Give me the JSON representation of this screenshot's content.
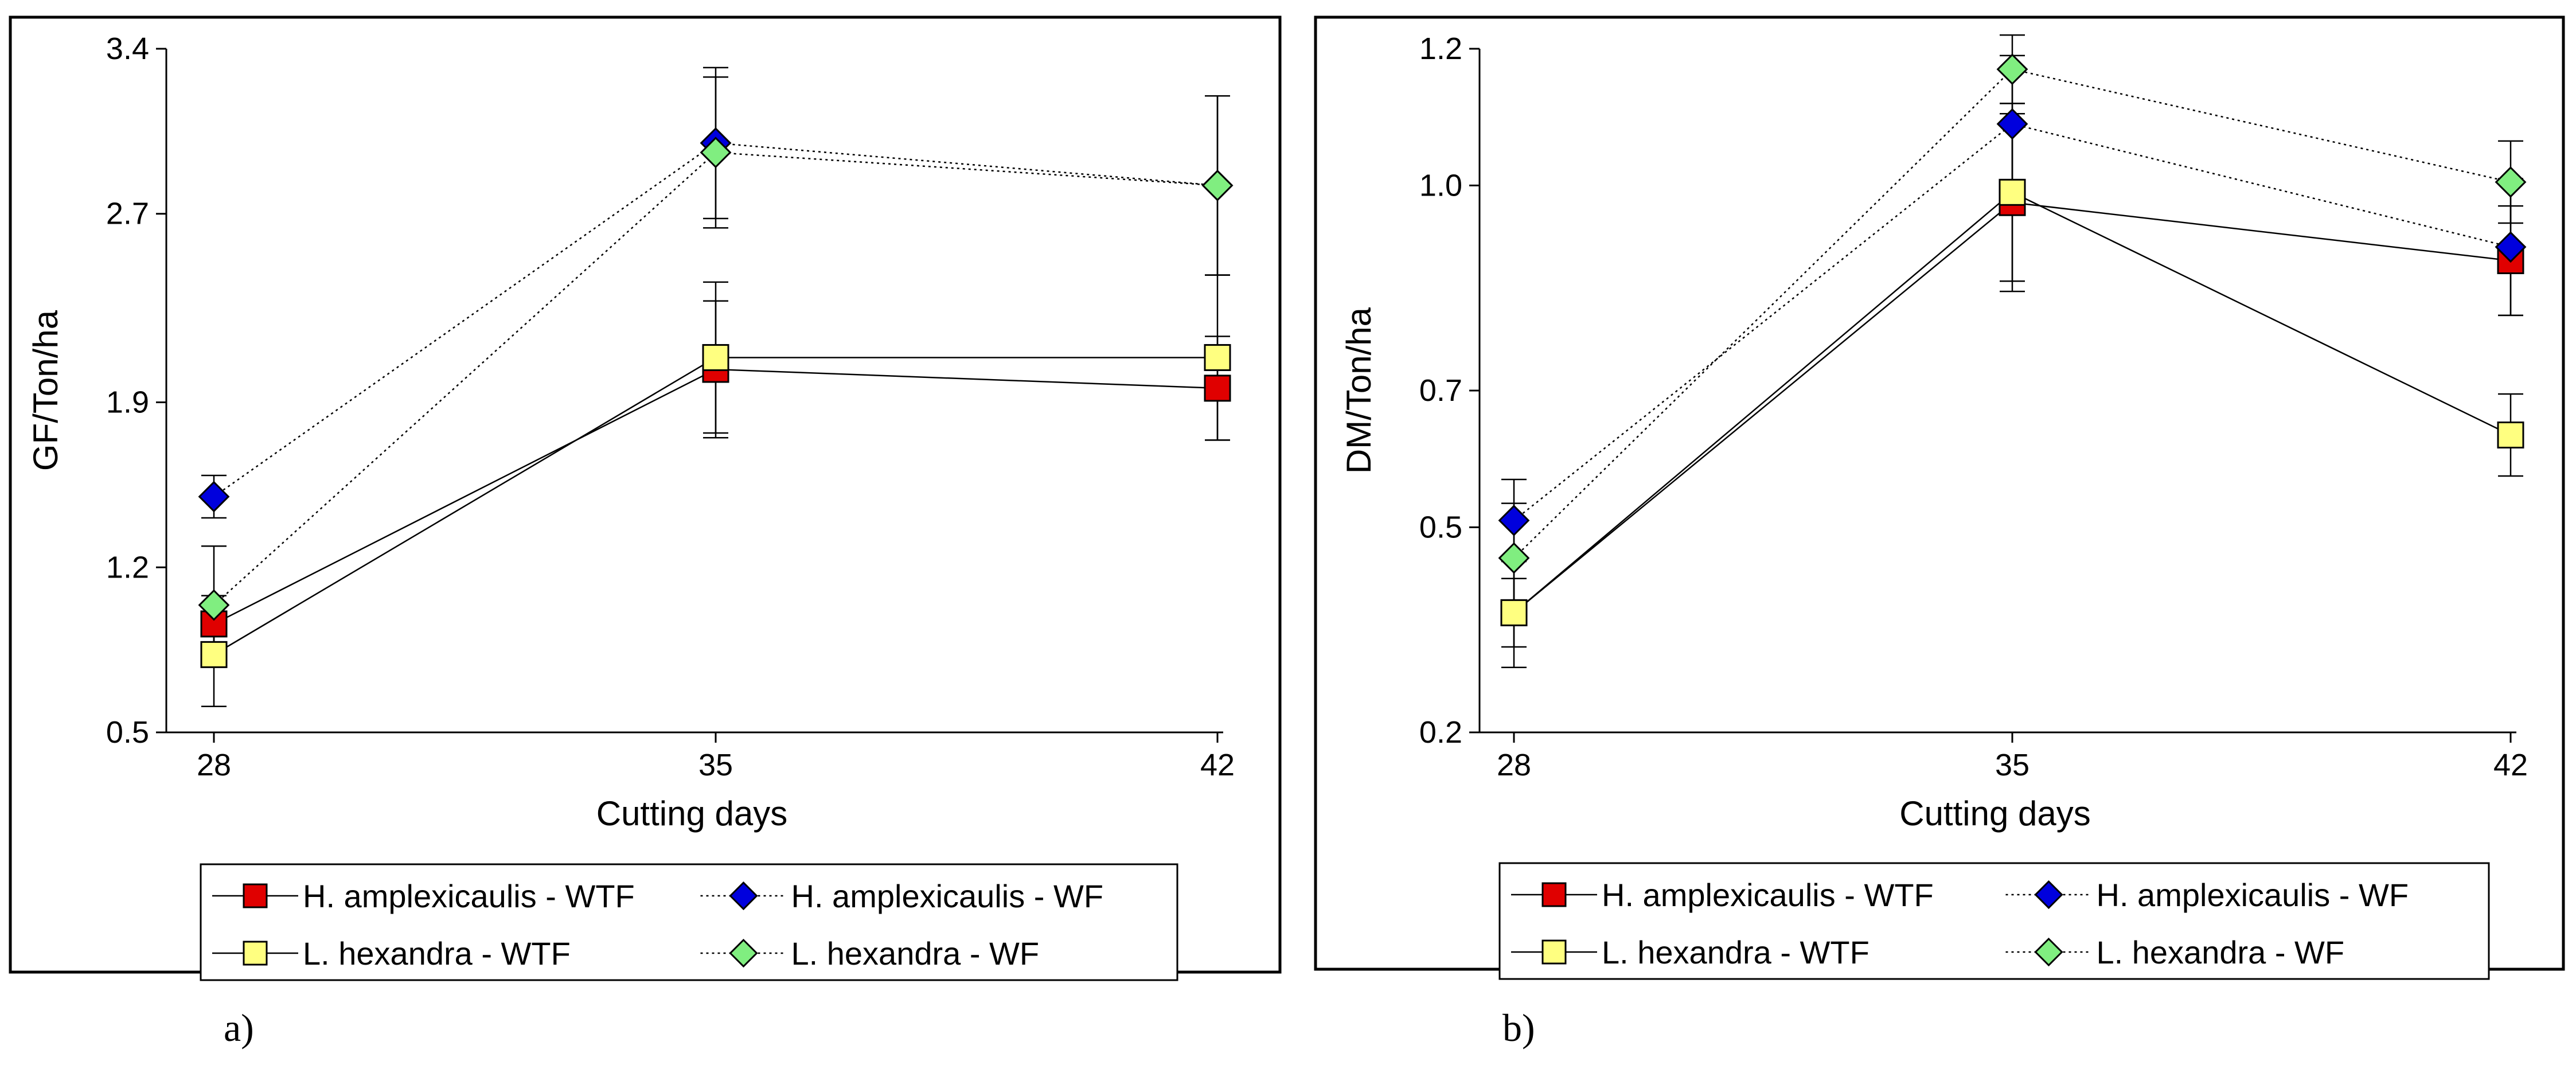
{
  "chart_data": [
    {
      "type": "line",
      "panel_label": "a)",
      "xlabel": "Cutting days",
      "ylabel": "GF/Ton/ha",
      "x": [
        28,
        35,
        42
      ],
      "x_tick_labels": [
        "28",
        "35",
        "42"
      ],
      "y_ticks": [
        0.5,
        1.2,
        1.9,
        2.7,
        3.4
      ],
      "y_tick_labels": [
        "0.5",
        "1.2",
        "1.9",
        "2.7",
        "3.4"
      ],
      "ylim": [
        0.5,
        3.4
      ],
      "grid": false,
      "legend_position": "bottom",
      "series": [
        {
          "name": "H. amplexicaulis - WTF",
          "values": [
            0.96,
            2.04,
            1.96
          ],
          "errors": [
            0.12,
            0.29,
            0.22
          ],
          "color": "#e00000",
          "marker": "square",
          "line": "solid"
        },
        {
          "name": "H. amplexicaulis - WF",
          "values": [
            1.5,
            3.0,
            2.82
          ],
          "errors": [
            0.09,
            0.32,
            0.38
          ],
          "color": "#0000dd",
          "marker": "diamond",
          "line": "dotted"
        },
        {
          "name": "L. hexandra - WTF",
          "values": [
            0.83,
            2.09,
            2.09
          ],
          "errors": [
            0.22,
            0.32,
            0.35
          ],
          "color": "#ffff80",
          "marker": "square",
          "line": "solid"
        },
        {
          "name": "L. hexandra - WF",
          "values": [
            1.04,
            2.96,
            2.82
          ],
          "errors": [
            0.25,
            0.32,
            0.38
          ],
          "color": "#80ee80",
          "marker": "diamond",
          "line": "dotted"
        }
      ]
    },
    {
      "type": "line",
      "panel_label": "b)",
      "xlabel": "Cutting days",
      "ylabel": "DM/Ton/ha",
      "x": [
        28,
        35,
        42
      ],
      "x_tick_labels": [
        "28",
        "35",
        "42"
      ],
      "y_ticks": [
        0.2,
        0.5,
        0.7,
        1.0,
        1.2
      ],
      "y_tick_labels": [
        "0.2",
        "0.5",
        "0.7",
        "1.0",
        "1.2"
      ],
      "ylim": [
        0.2,
        1.2
      ],
      "grid": false,
      "legend_position": "bottom",
      "series": [
        {
          "name": "H. amplexicaulis - WTF",
          "values": [
            0.375,
            0.975,
            0.89
          ],
          "errors": [
            0.05,
            0.13,
            0.08
          ],
          "color": "#e00000",
          "marker": "square",
          "line": "solid"
        },
        {
          "name": "H. amplexicaulis - WF",
          "values": [
            0.51,
            1.09,
            0.91
          ],
          "errors": [
            0.06,
            0.1,
            0.1
          ],
          "color": "#0000dd",
          "marker": "diamond",
          "line": "dotted"
        },
        {
          "name": "L. hexandra - WTF",
          "values": [
            0.375,
            0.99,
            0.635
          ],
          "errors": [
            0.08,
            0.13,
            0.06
          ],
          "color": "#ffff80",
          "marker": "square",
          "line": "solid"
        },
        {
          "name": "L. hexandra - WF",
          "values": [
            0.455,
            1.17,
            1.005
          ],
          "errors": [
            0.08,
            0.05,
            0.06
          ],
          "color": "#80ee80",
          "marker": "diamond",
          "line": "dotted"
        }
      ]
    }
  ]
}
